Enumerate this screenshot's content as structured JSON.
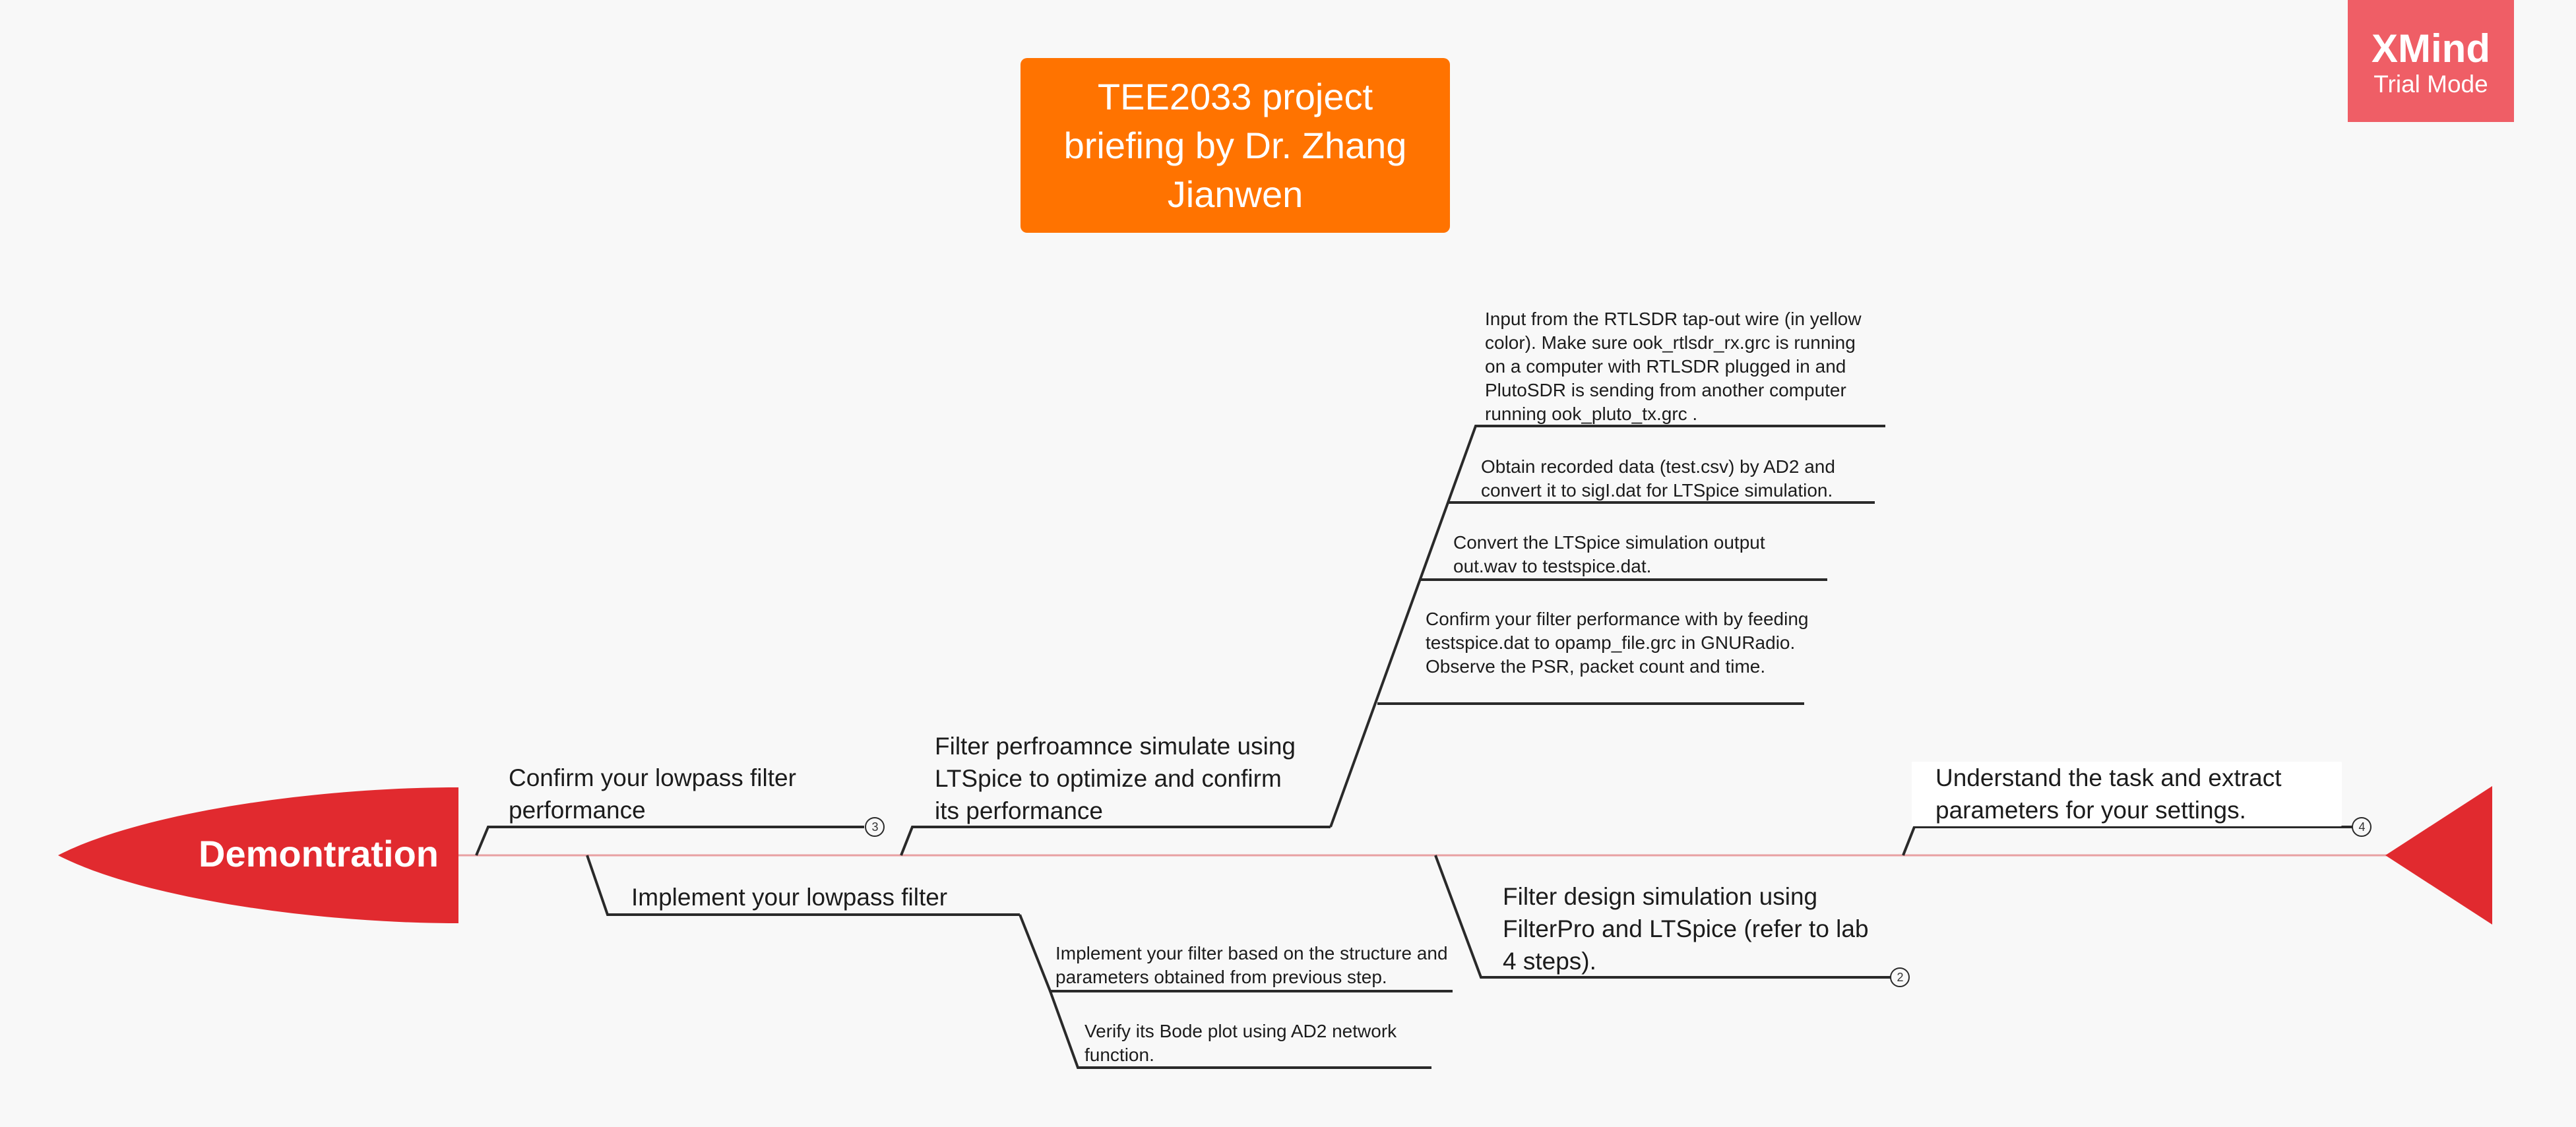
{
  "title": "TEE2033 project briefing by Dr. Zhang Jianwen",
  "watermark": {
    "brand": "XMind",
    "mode": "Trial Mode"
  },
  "head": {
    "label": "Demontration"
  },
  "branches": [
    {
      "label": "Confirm your lowpass filter performance",
      "badge": "3"
    },
    {
      "label": "Implement your lowpass filter",
      "children": [
        "Implement your filter based on the structure and parameters obtained from previous step.",
        "Verify its Bode plot using AD2 network function."
      ]
    },
    {
      "label": "Filter perfroamnce simulate using LTSpice to optimize and confirm its performance",
      "children": [
        "Input from the RTLSDR tap-out wire (in yellow color). Make sure ook_rtlsdr_rx.grc is running on a computer with RTLSDR plugged in and PlutoSDR is sending from another computer running ook_pluto_tx.grc .",
        "Obtain recorded data  (test.csv) by AD2 and convert it to sigI.dat for LTSpice simulation.",
        "Convert the LTSpice simulation output out.wav to testspice.dat.",
        "Confirm your filter performance with by feeding testspice.dat to opamp_file.grc in GNURadio. Observe the PSR, packet count and time."
      ]
    },
    {
      "label": "Filter design simulation using FilterPro and LTSpice (refer to lab 4 steps).",
      "badge": "2"
    },
    {
      "label": "Understand the task and extract parameters for your settings.",
      "badge": "4"
    }
  ],
  "colors": {
    "background": "#f8f8f8",
    "title_fill": "#ff7300",
    "fish_red": "#e12a2f",
    "watermark_fill": "#ef5e66",
    "line": "#2a2a2a",
    "spine": "#e8a0a2"
  }
}
